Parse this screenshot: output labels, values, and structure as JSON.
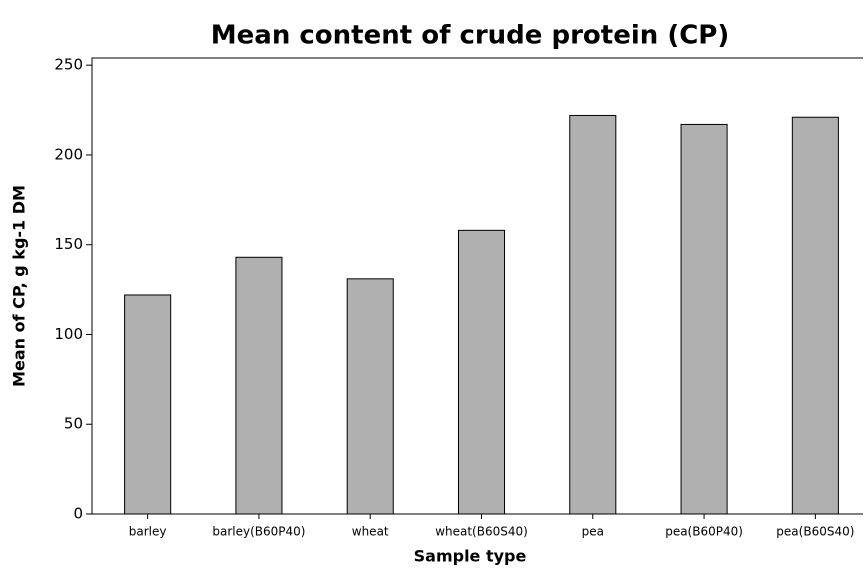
{
  "chart_data": {
    "type": "bar",
    "title": "Mean content of crude protein (CP)",
    "x_label": "Sample type",
    "y_label": "Mean of CP, g kg-1 DM",
    "categories": [
      "barley",
      "barley(B60P40)",
      "wheat",
      "wheat(B60S40)",
      "pea",
      "pea(B60P40)",
      "pea(B60S40)"
    ],
    "values": [
      122,
      143,
      131,
      158,
      222,
      217,
      221
    ],
    "color": "#b0b0b0",
    "ylim": [
      0,
      254
    ],
    "yticks": [
      0,
      50,
      100,
      150,
      200,
      250
    ],
    "grid": false
  }
}
